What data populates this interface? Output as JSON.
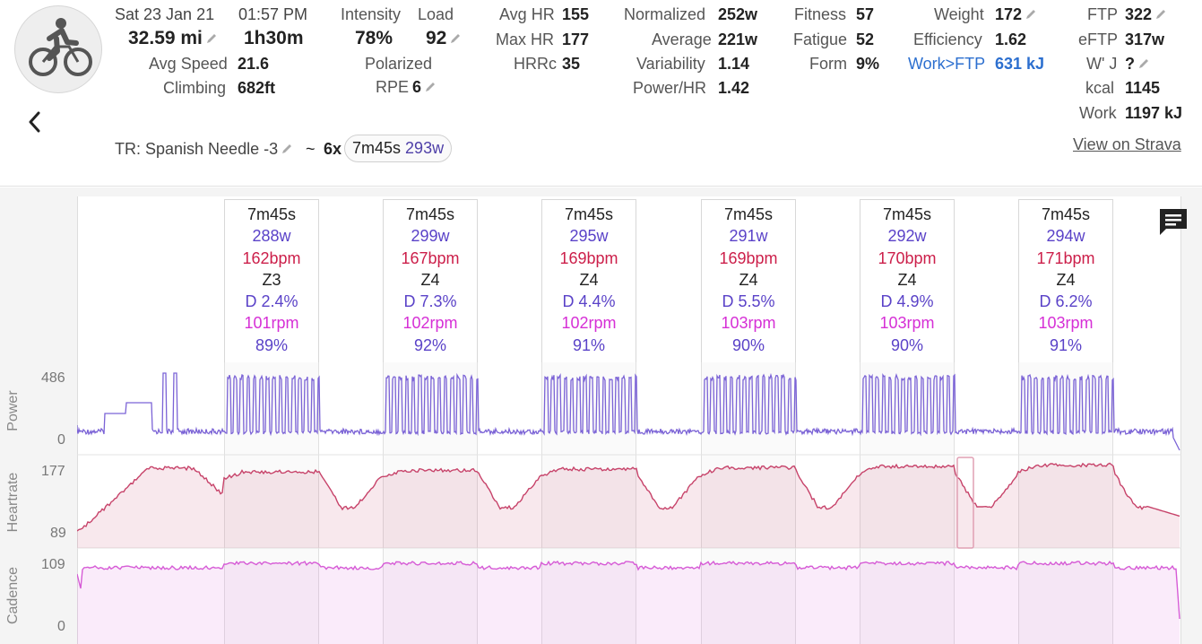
{
  "activity": {
    "date": "Sat 23 Jan 21",
    "time": "01:57 PM",
    "distance": "32.59 mi",
    "duration": "1h30m",
    "avg_speed_label": "Avg Speed",
    "avg_speed": "21.6",
    "climbing_label": "Climbing",
    "climbing": "682ft",
    "intensity_label": "Intensity",
    "intensity": "78%",
    "load_label": "Load",
    "load": "92",
    "polarized_label": "Polarized",
    "rpe_label": "RPE",
    "rpe": "6",
    "avg_hr_label": "Avg HR",
    "avg_hr": "155",
    "max_hr_label": "Max HR",
    "max_hr": "177",
    "hrrc_label": "HRRc",
    "hrrc": "35",
    "normalized_label": "Normalized",
    "normalized": "252w",
    "average_label": "Average",
    "average": "221w",
    "variability_label": "Variability",
    "variability": "1.14",
    "power_hr_label": "Power/HR",
    "power_hr": "1.42",
    "fitness_label": "Fitness",
    "fitness": "57",
    "fatigue_label": "Fatigue",
    "fatigue": "52",
    "form_label": "Form",
    "form": "9%",
    "weight_label": "Weight",
    "weight": "172",
    "efficiency_label": "Efficiency",
    "efficiency": "1.62",
    "work_ftp_label": "Work>FTP",
    "work_ftp": "631 kJ",
    "ftp_label": "FTP",
    "ftp": "322",
    "eftp_label": "eFTP",
    "eftp": "317w",
    "wj_label": "W' J",
    "wj": "?",
    "kcal_label": "kcal",
    "kcal": "1145",
    "work_label": "Work",
    "work": "1197 kJ",
    "strava_link": "View on Strava",
    "workout_name": "TR: Spanish Needle -3",
    "tilde": "~",
    "reps": "6x",
    "rep_duration": "7m45s",
    "rep_power": "293w"
  },
  "chart": {
    "power_label": "Power",
    "power_max": "486",
    "power_min": "0",
    "hr_label": "Heartrate",
    "hr_max": "177",
    "hr_min": "89",
    "cadence_label": "Cadence",
    "cadence_max": "109",
    "cadence_min": "0"
  },
  "colors": {
    "power": "#7b63d6",
    "heartrate": "#c7436a",
    "cadence": "#d65bd6",
    "link": "#2c6fcf"
  },
  "intervals": [
    {
      "duration": "7m45s",
      "power": "288w",
      "hr": "162bpm",
      "zone": "Z3",
      "decoupling": "D 2.4%",
      "cadence": "101rpm",
      "efficiency": "89%"
    },
    {
      "duration": "7m45s",
      "power": "299w",
      "hr": "167bpm",
      "zone": "Z4",
      "decoupling": "D 7.3%",
      "cadence": "102rpm",
      "efficiency": "92%"
    },
    {
      "duration": "7m45s",
      "power": "295w",
      "hr": "169bpm",
      "zone": "Z4",
      "decoupling": "D 4.4%",
      "cadence": "102rpm",
      "efficiency": "91%"
    },
    {
      "duration": "7m45s",
      "power": "291w",
      "hr": "169bpm",
      "zone": "Z4",
      "decoupling": "D 5.5%",
      "cadence": "103rpm",
      "efficiency": "90%"
    },
    {
      "duration": "7m45s",
      "power": "292w",
      "hr": "170bpm",
      "zone": "Z4",
      "decoupling": "D 4.9%",
      "cadence": "103rpm",
      "efficiency": "90%"
    },
    {
      "duration": "7m45s",
      "power": "294w",
      "hr": "171bpm",
      "zone": "Z4",
      "decoupling": "D 6.2%",
      "cadence": "103rpm",
      "efficiency": "91%"
    }
  ]
}
